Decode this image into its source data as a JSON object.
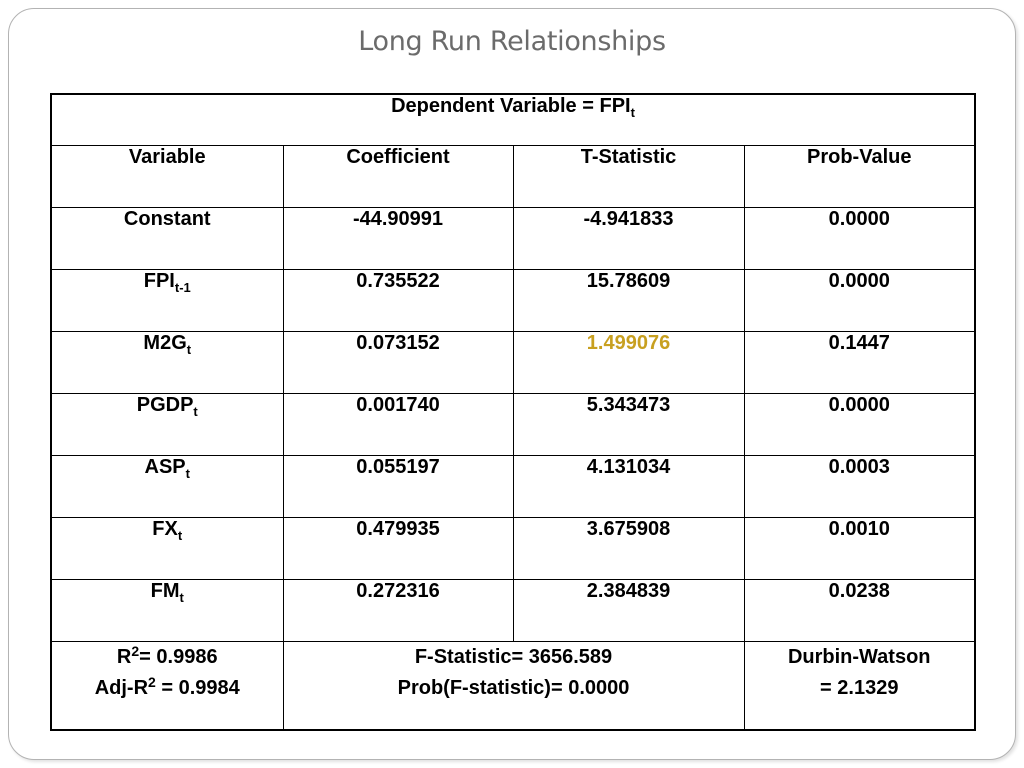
{
  "slide": {
    "title": "Long Run Relationships"
  },
  "table": {
    "dependent_prefix": "Dependent Variable = FPI",
    "dependent_sub": "t",
    "headers": [
      "Variable",
      "Coefficient",
      "T-Statistic",
      "Prob-Value"
    ],
    "rows": [
      {
        "var": "Constant",
        "sub": "",
        "coef": "-44.90991",
        "tstat": "-4.941833",
        "prob": "0.0000"
      },
      {
        "var": "FPI",
        "sub": "t-1",
        "coef": "0.735522",
        "tstat": "15.78609",
        "prob": "0.0000"
      },
      {
        "var": "M2G",
        "sub": "t",
        "coef": "0.073152",
        "tstat": "1.499076",
        "prob": "0.1447",
        "tstat_color": "#c8a020"
      },
      {
        "var": "PGDP",
        "sub": "t",
        "coef": "0.001740",
        "tstat": "5.343473",
        "prob": "0.0000"
      },
      {
        "var": "ASP",
        "sub": "t",
        "coef": "0.055197",
        "tstat": "4.131034",
        "prob": "0.0003"
      },
      {
        "var": "FX",
        "sub": "t",
        "coef": "0.479935",
        "tstat": "3.675908",
        "prob": "0.0010"
      },
      {
        "var": "FM",
        "sub": "t",
        "coef": "0.272316",
        "tstat": "2.384839",
        "prob": "0.0238"
      }
    ],
    "footer": {
      "r2_label": "R",
      "r2_sup": "2",
      "r2_value": "= 0.9986",
      "adj_r2_label": "Adj-R",
      "adj_r2_sup": "2",
      "adj_r2_value": " = 0.9984",
      "f_stat": "F-Statistic= 3656.589",
      "prob_f": "Prob(F-statistic)= 0.0000",
      "dw_line1": "Durbin-Watson",
      "dw_line2": "= 2.1329"
    }
  }
}
